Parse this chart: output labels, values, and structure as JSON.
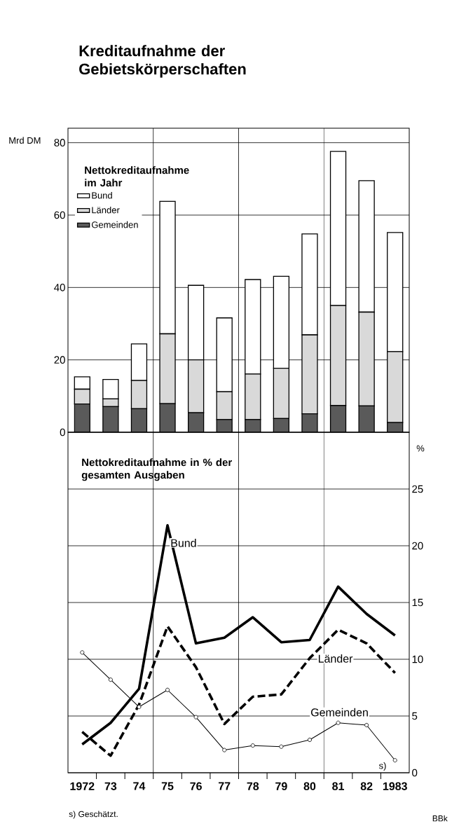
{
  "chart_data": [
    {
      "type": "bar",
      "title": "Kreditaufnahme der Gebietskörperschaften",
      "subtitle": "Nettokreditaufnahme im Jahr",
      "ylabel": "Mrd DM",
      "categories": [
        "1972",
        "73",
        "74",
        "75",
        "76",
        "77",
        "78",
        "79",
        "80",
        "81",
        "82",
        "1983"
      ],
      "stacked": true,
      "series": [
        {
          "name": "Gemeinden",
          "color": "#5a5a5a",
          "values": [
            7.8,
            7.1,
            6.5,
            7.9,
            5.4,
            3.5,
            3.5,
            3.8,
            5.1,
            7.4,
            7.3,
            2.7
          ]
        },
        {
          "name": "Länder",
          "color": "#d9d9d9",
          "values": [
            4.1,
            2.1,
            7.8,
            19.3,
            14.6,
            7.7,
            12.6,
            13.9,
            21.8,
            27.6,
            25.9,
            19.6
          ]
        },
        {
          "name": "Bund",
          "color": "#ffffff",
          "values": [
            3.4,
            5.4,
            10.1,
            36.6,
            20.6,
            20.4,
            26.1,
            25.4,
            27.9,
            42.6,
            36.3,
            32.9
          ]
        }
      ],
      "ylim": [
        0,
        84
      ],
      "yticks": [
        0,
        20,
        40,
        60,
        80
      ],
      "grid": true,
      "legend": "top left",
      "tick_labels": "y"
    },
    {
      "type": "line",
      "title": "Nettokreditaufnahme in % der gesamten Ausgaben",
      "ylabel": "%",
      "categories": [
        "1972",
        "73",
        "74",
        "75",
        "76",
        "77",
        "78",
        "79",
        "80",
        "81",
        "82",
        "1983"
      ],
      "series": [
        {
          "name": "Bund",
          "color": "#000000",
          "line_style": "solid",
          "marker": "none",
          "values": [
            2.5,
            4.4,
            7.4,
            21.8,
            11.4,
            11.9,
            13.7,
            11.5,
            11.7,
            16.4,
            14.0,
            12.1
          ]
        },
        {
          "name": "Länder",
          "color": "#000000",
          "line_style": "dashed",
          "marker": "none",
          "values": [
            3.6,
            1.5,
            6.0,
            12.9,
            9.3,
            4.3,
            6.7,
            6.9,
            10.1,
            12.6,
            11.4,
            8.8
          ]
        },
        {
          "name": "Gemeinden",
          "color": "#000000",
          "line_style": "solid",
          "marker": "circle",
          "values": [
            10.6,
            8.2,
            5.8,
            7.3,
            4.9,
            2.0,
            2.4,
            2.3,
            2.9,
            4.4,
            4.2,
            1.1
          ]
        }
      ],
      "ylim": [
        0,
        30
      ],
      "yticks": [
        0,
        5,
        10,
        15,
        20,
        25
      ],
      "grid": true,
      "legend": false,
      "annotations": [
        "s)",
        "s) Geschätzt.",
        "BBk"
      ]
    }
  ]
}
